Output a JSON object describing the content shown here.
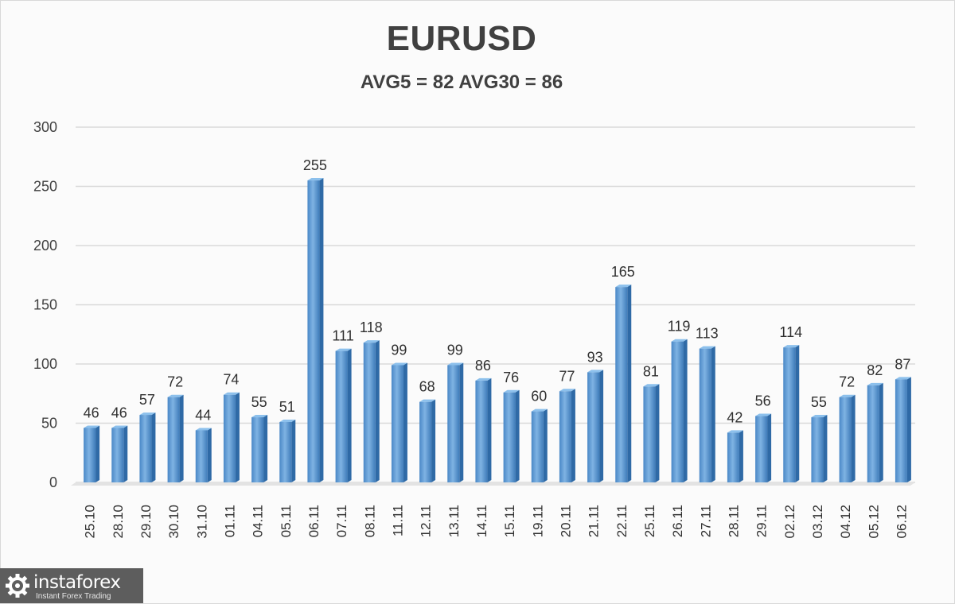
{
  "chart_data": {
    "type": "bar",
    "title": "EURUSD",
    "subtitle": "AVG5 = 82 AVG30 = 86",
    "categories": [
      "25.10",
      "28.10",
      "29.10",
      "30.10",
      "31.10",
      "01.11",
      "04.11",
      "05.11",
      "06.11",
      "07.11",
      "08.11",
      "11.11",
      "12.11",
      "13.11",
      "14.11",
      "15.11",
      "19.11",
      "20.11",
      "21.11",
      "22.11",
      "25.11",
      "26.11",
      "27.11",
      "28.11",
      "29.11",
      "02.12",
      "03.12",
      "04.12",
      "05.12",
      "06.12"
    ],
    "values": [
      46,
      46,
      57,
      72,
      44,
      74,
      55,
      51,
      255,
      111,
      118,
      99,
      68,
      99,
      86,
      76,
      60,
      77,
      93,
      165,
      81,
      119,
      113,
      42,
      56,
      114,
      55,
      72,
      82,
      87
    ],
    "ylim": [
      0,
      300
    ],
    "yticks": [
      0,
      50,
      100,
      150,
      200,
      250,
      300
    ],
    "grid": true,
    "bar_color": "#5b9bd5",
    "data_labels": true
  },
  "watermark": {
    "brand": "instaforex",
    "tagline": "Instant Forex Trading",
    "icon": "gear-icon"
  }
}
